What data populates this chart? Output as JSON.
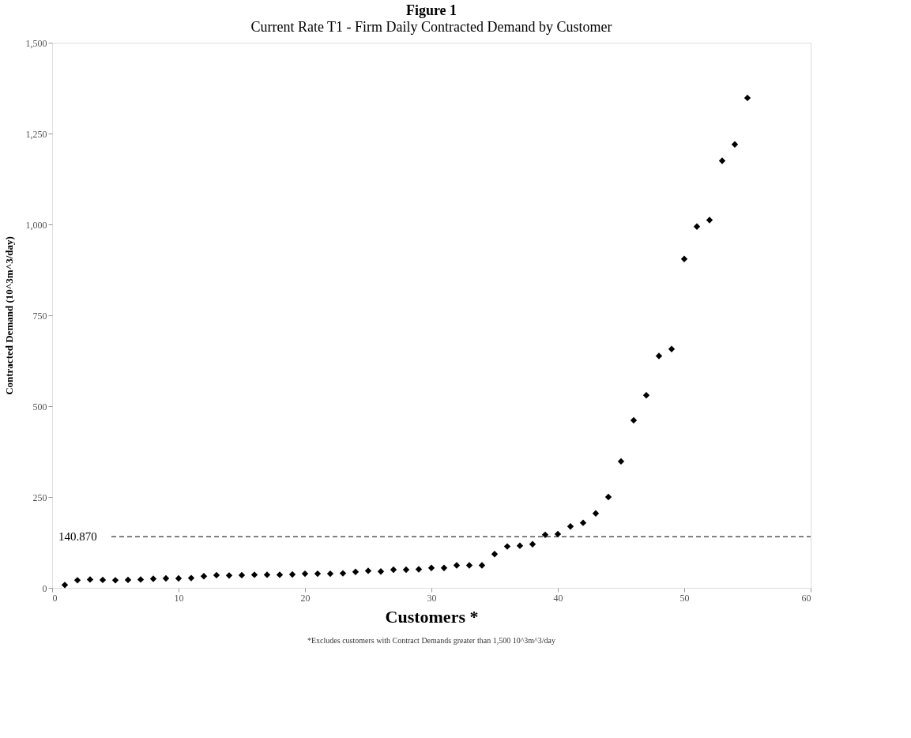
{
  "chart_data": {
    "type": "scatter",
    "title": "Figure 1",
    "subtitle": "Current Rate T1 - Firm Daily Contracted Demand by Customer",
    "xlabel": "Customers *",
    "ylabel": "Contracted Demand (10^3m^3/day)",
    "annotations": [
      "*Excludes customers with Contract Demands greater than 1,500 10^3m^3/day"
    ],
    "x": [
      1,
      2,
      3,
      4,
      5,
      6,
      7,
      8,
      9,
      10,
      11,
      12,
      13,
      14,
      15,
      16,
      17,
      18,
      19,
      20,
      21,
      22,
      23,
      24,
      25,
      26,
      27,
      28,
      29,
      30,
      31,
      32,
      33,
      34,
      35,
      36,
      37,
      38,
      39,
      40,
      41,
      42,
      43,
      44,
      45,
      46,
      47,
      48,
      49,
      50,
      51,
      52,
      53,
      54,
      55
    ],
    "series": [
      {
        "color": "#000000",
        "values": [
          8,
          21,
          23,
          22,
          21,
          22,
          23,
          25,
          26,
          26,
          27,
          32,
          35,
          34,
          35,
          36,
          36,
          36,
          37,
          39,
          39,
          39,
          40,
          44,
          47,
          45,
          50,
          50,
          51,
          55,
          55,
          62,
          62,
          62,
          93,
          114,
          116,
          120,
          146,
          148,
          169,
          179,
          205,
          250,
          348,
          461,
          530,
          638,
          657,
          905,
          994,
          1012,
          1175,
          1220,
          1348
        ]
      }
    ],
    "marker": "diamond",
    "xlim": [
      0,
      60
    ],
    "xticks": [
      0,
      10,
      20,
      30,
      40,
      50,
      60
    ],
    "ylim": [
      0,
      1500
    ],
    "yticks": [
      0,
      250,
      500,
      750,
      {
        "value": 1000,
        "label": "1,000"
      },
      {
        "value": 1250,
        "label": "1,250"
      },
      {
        "value": 1500,
        "label": "1,500"
      }
    ],
    "ref_lines": [
      {
        "axis": "y",
        "value": 140.87,
        "label": "140.870",
        "line_style": "dashed",
        "color": "#000000"
      }
    ],
    "grid": false
  }
}
